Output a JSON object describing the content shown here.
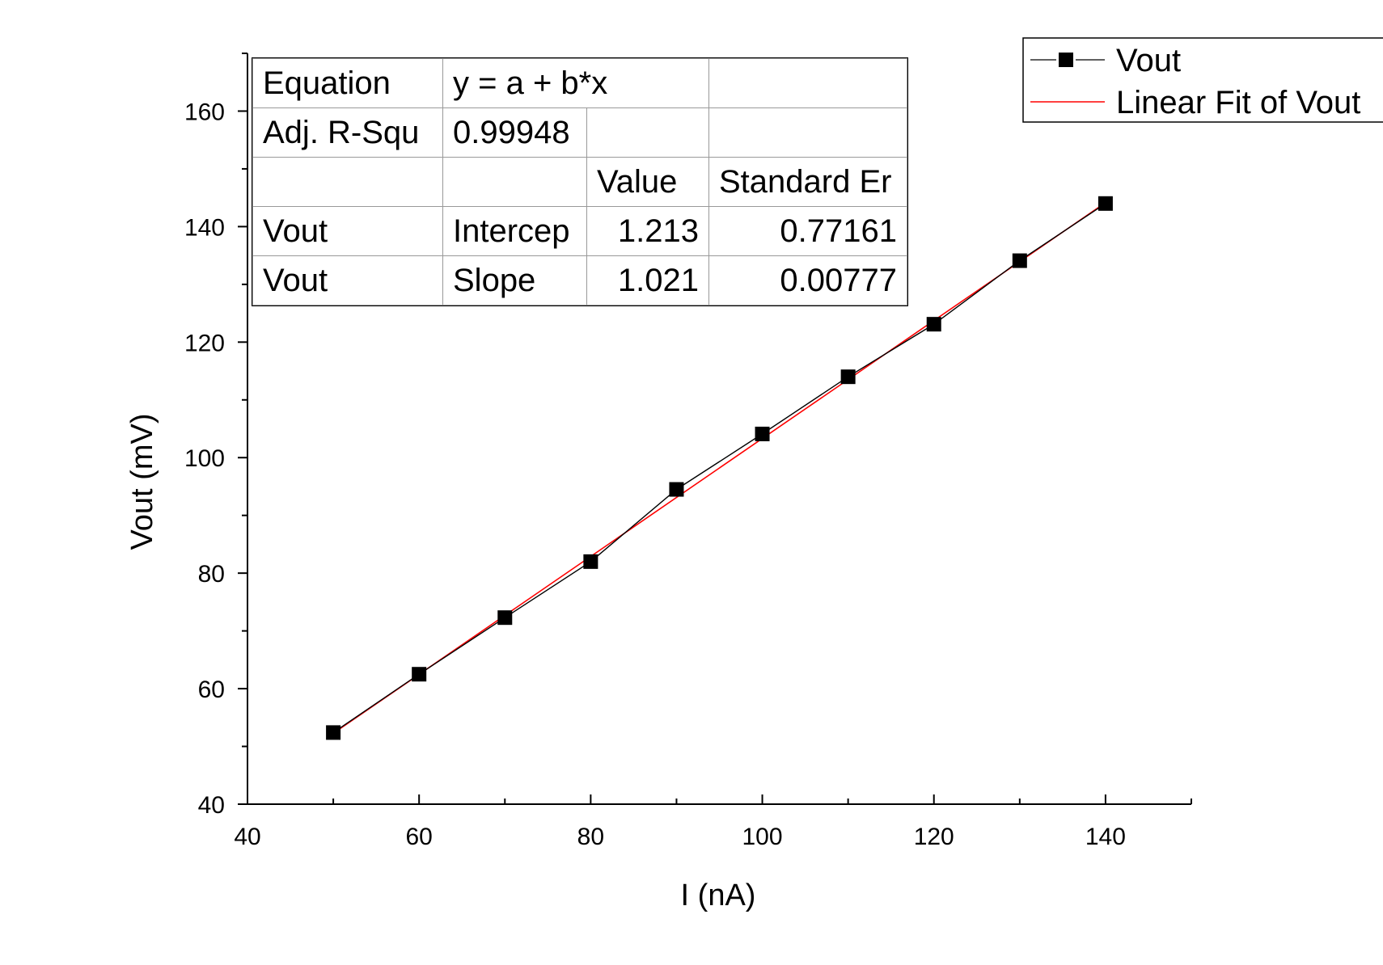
{
  "chart_data": {
    "type": "scatter",
    "xlabel": "I (nA)",
    "ylabel": "Vout (mV)",
    "xlim": [
      40,
      150
    ],
    "ylim": [
      40,
      170
    ],
    "x_ticks": [
      "40",
      "60",
      "80",
      "100",
      "120",
      "140"
    ],
    "y_ticks": [
      "40",
      "60",
      "80",
      "100",
      "120",
      "140",
      "160"
    ],
    "grid": false,
    "legend_position": "top-right",
    "series": [
      {
        "name": "Vout",
        "style": "line+square-markers",
        "color": "#000000",
        "x": [
          50,
          60,
          70,
          80,
          90,
          100,
          110,
          120,
          130,
          140
        ],
        "y": [
          52.4,
          62.5,
          72.3,
          82.0,
          94.5,
          104.1,
          114.0,
          123.1,
          134.1,
          144.0
        ]
      },
      {
        "name": "Linear Fit of Vout",
        "style": "line",
        "color": "#ff0000",
        "intercept": 1.213,
        "slope": 1.021,
        "x_range": [
          50,
          140
        ]
      }
    ]
  },
  "fit_table": {
    "equation_label": "Equation",
    "equation_value": "y = a + b*x",
    "r2_label": "Adj. R-Squ",
    "r2_value": "0.99948",
    "value_header": "Value",
    "stderr_header": "Standard Er",
    "rows": [
      {
        "name": "Vout",
        "param": "Intercep",
        "value": "1.213",
        "stderr": "0.77161"
      },
      {
        "name": "Vout",
        "param": "Slope",
        "value": "1.021",
        "stderr": "0.00777"
      }
    ]
  }
}
